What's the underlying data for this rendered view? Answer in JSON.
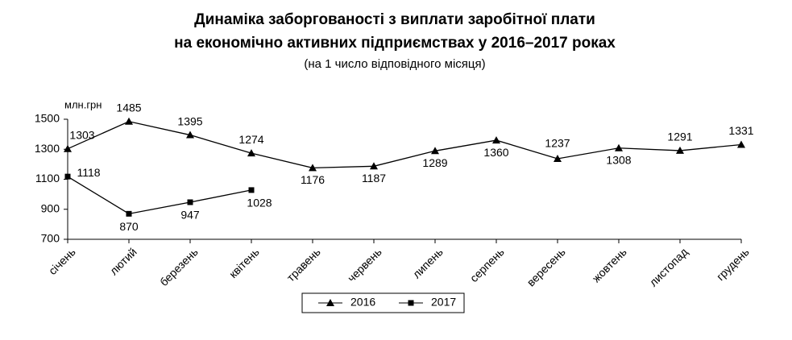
{
  "chart_data": {
    "type": "line",
    "title": [
      "Динаміка заборгованості з виплати заробітної плати",
      "на економічно активних підприємствах у 2016–2017 роках"
    ],
    "subtitle": "(на 1 число відповідного місяця)",
    "y_label": "млн.грн",
    "categories": [
      "січень",
      "лютий",
      "березень",
      "квітень",
      "травень",
      "червень",
      "липень",
      "серпень",
      "вересень",
      "жовтень",
      "листопад",
      "грудень"
    ],
    "series": [
      {
        "name": "2016",
        "color": "#000000",
        "marker": "triangle",
        "values": [
          1303,
          1485,
          1395,
          1274,
          1176,
          1187,
          1289,
          1360,
          1237,
          1308,
          1291,
          1331
        ]
      },
      {
        "name": "2017",
        "color": "#000000",
        "marker": "square",
        "values": [
          1118,
          870,
          947,
          1028,
          null,
          null,
          null,
          null,
          null,
          null,
          null,
          null
        ]
      }
    ],
    "ylim": [
      700,
      1500
    ],
    "yticks": [
      700,
      900,
      1100,
      1300,
      1500
    ],
    "grid": false,
    "legend": "bottom"
  }
}
